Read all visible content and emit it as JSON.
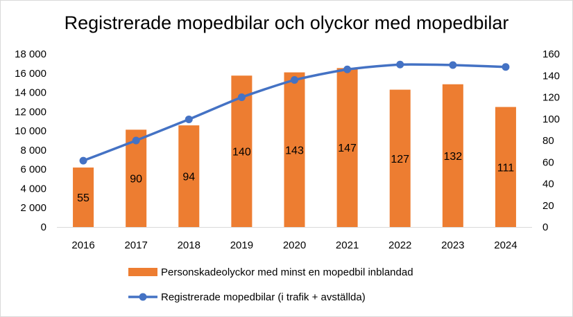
{
  "chart_data": {
    "type": "bar+line",
    "title": "Registrerade mopedbilar och olyckor med mopedbilar",
    "categories": [
      "2016",
      "2017",
      "2018",
      "2019",
      "2020",
      "2021",
      "2022",
      "2023",
      "2024"
    ],
    "series": [
      {
        "name": "Personskadeolyckor med minst en mopedbil inblandad",
        "type": "bar",
        "axis": "right",
        "color": "#ED7D31",
        "values": [
          55,
          90,
          94,
          140,
          143,
          147,
          127,
          132,
          111
        ],
        "data_labels": [
          "55",
          "90",
          "94",
          "140",
          "143",
          "147",
          "127",
          "132",
          "111"
        ]
      },
      {
        "name": "Registrerade mopedbilar (i trafik + avställda)",
        "type": "line",
        "axis": "left",
        "color": "#4472C4",
        "values": [
          6900,
          9000,
          11200,
          13500,
          15300,
          16400,
          16900,
          16850,
          16650
        ]
      }
    ],
    "y_left": {
      "ylim": [
        0,
        18000
      ],
      "ticks": [
        0,
        2000,
        4000,
        6000,
        8000,
        10000,
        12000,
        14000,
        16000,
        18000
      ],
      "tick_labels": [
        "0",
        "2 000",
        "4 000",
        "6 000",
        "8 000",
        "10 000",
        "12 000",
        "14 000",
        "16 000",
        "18 000"
      ]
    },
    "y_right": {
      "ylim": [
        0,
        160
      ],
      "ticks": [
        0,
        20,
        40,
        60,
        80,
        100,
        120,
        140,
        160
      ],
      "tick_labels": [
        "0",
        "20",
        "40",
        "60",
        "80",
        "100",
        "120",
        "140",
        "160"
      ]
    },
    "grid": false,
    "legend_position": "bottom"
  }
}
